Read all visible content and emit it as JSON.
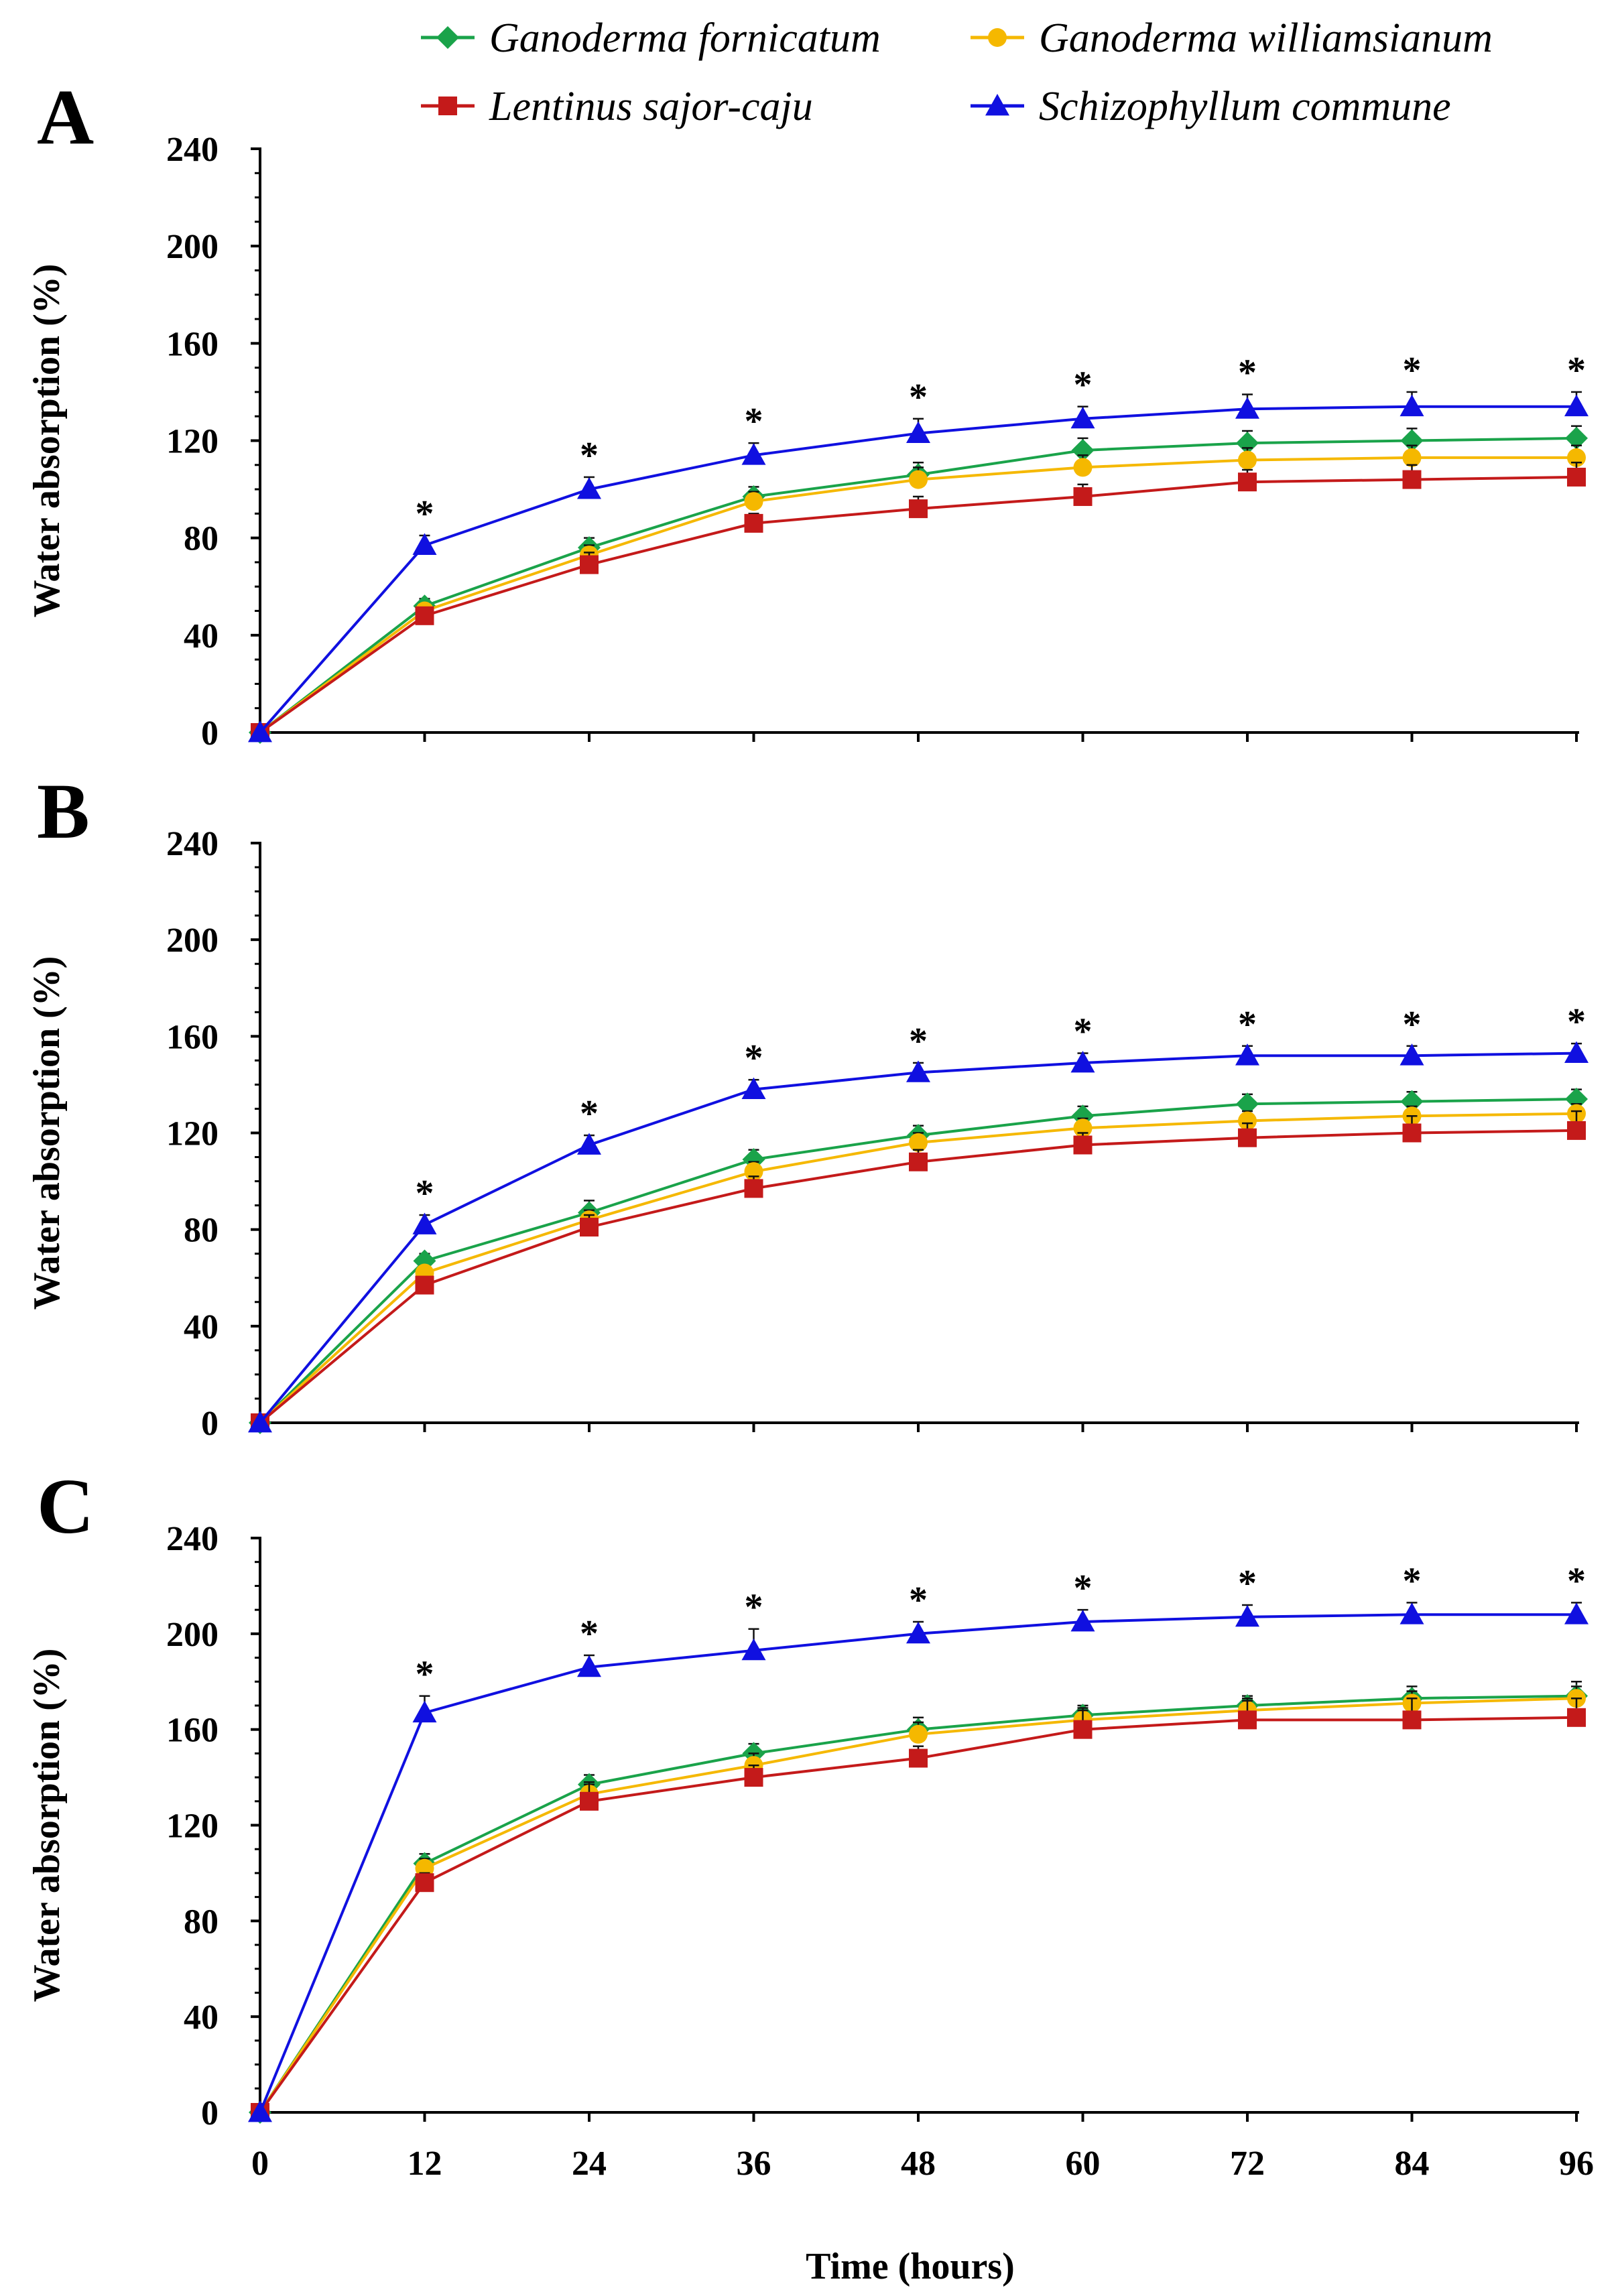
{
  "chart_data": {
    "type": "line",
    "xlabel": "Time (hours)",
    "ylabel": "Water absorption (%)",
    "x": [
      0,
      12,
      24,
      36,
      48,
      60,
      72,
      84,
      96
    ],
    "x_tick_labels": [
      "0",
      "12",
      "24",
      "36",
      "48",
      "60",
      "72",
      "84",
      "96"
    ],
    "ylim": [
      0,
      240
    ],
    "y_ticks": [
      0,
      40,
      80,
      120,
      160,
      200,
      240
    ],
    "y_tick_labels": [
      "0",
      "40",
      "80",
      "120",
      "160",
      "200",
      "240"
    ],
    "significance_marker": "*",
    "legend": [
      {
        "name": "Ganoderma fornicatum",
        "color": "#1aa34a",
        "marker": "diamond"
      },
      {
        "name": "Ganoderma williamsianum",
        "color": "#f5b800",
        "marker": "circle"
      },
      {
        "name": "Lentinus sajor-caju",
        "color": "#c41a1a",
        "marker": "square"
      },
      {
        "name": "Schizophyllum commune",
        "color": "#1010e0",
        "marker": "triangle"
      }
    ],
    "panels": [
      {
        "label": "A",
        "series": [
          {
            "name": "Ganoderma fornicatum",
            "values": [
              0,
              52,
              76,
              97,
              106,
              116,
              119,
              120,
              121
            ],
            "errors": [
              0,
              3,
              4,
              4,
              5,
              5,
              5,
              5,
              5
            ]
          },
          {
            "name": "Ganoderma williamsianum",
            "values": [
              0,
              50,
              73,
              95,
              104,
              109,
              112,
              113,
              113
            ],
            "errors": [
              0,
              3,
              4,
              4,
              5,
              5,
              5,
              5,
              5
            ]
          },
          {
            "name": "Lentinus sajor-caju",
            "values": [
              0,
              48,
              69,
              86,
              92,
              97,
              103,
              104,
              105
            ],
            "errors": [
              0,
              3,
              5,
              4,
              5,
              5,
              5,
              6,
              6
            ]
          },
          {
            "name": "Schizophyllum commune",
            "values": [
              0,
              77,
              100,
              114,
              123,
              129,
              133,
              134,
              134
            ],
            "errors": [
              0,
              4,
              5,
              5,
              6,
              5,
              6,
              6,
              6
            ]
          }
        ],
        "significant_at": [
          12,
          24,
          36,
          48,
          60,
          72,
          84,
          96
        ]
      },
      {
        "label": "B",
        "series": [
          {
            "name": "Ganoderma fornicatum",
            "values": [
              0,
              67,
              87,
              109,
              119,
              127,
              132,
              133,
              134
            ],
            "errors": [
              0,
              3,
              5,
              4,
              4,
              4,
              4,
              4,
              4
            ]
          },
          {
            "name": "Ganoderma williamsianum",
            "values": [
              0,
              62,
              84,
              104,
              116,
              122,
              125,
              127,
              128
            ],
            "errors": [
              0,
              3,
              4,
              4,
              4,
              4,
              4,
              4,
              4
            ]
          },
          {
            "name": "Lentinus sajor-caju",
            "values": [
              0,
              57,
              81,
              97,
              108,
              115,
              118,
              120,
              121
            ],
            "errors": [
              0,
              3,
              5,
              5,
              5,
              5,
              6,
              7,
              8
            ]
          },
          {
            "name": "Schizophyllum commune",
            "values": [
              0,
              82,
              115,
              138,
              145,
              149,
              152,
              152,
              153
            ],
            "errors": [
              0,
              4,
              4,
              4,
              4,
              4,
              4,
              4,
              4
            ]
          }
        ],
        "significant_at": [
          12,
          24,
          36,
          48,
          60,
          72,
          84,
          96
        ]
      },
      {
        "label": "C",
        "series": [
          {
            "name": "Ganoderma fornicatum",
            "values": [
              0,
              104,
              137,
              150,
              160,
              166,
              170,
              173,
              174
            ],
            "errors": [
              0,
              4,
              4,
              4,
              5,
              4,
              4,
              5,
              6
            ]
          },
          {
            "name": "Ganoderma williamsianum",
            "values": [
              0,
              102,
              133,
              145,
              158,
              164,
              168,
              171,
              173
            ],
            "errors": [
              0,
              4,
              4,
              5,
              5,
              5,
              5,
              5,
              5
            ]
          },
          {
            "name": "Lentinus sajor-caju",
            "values": [
              0,
              96,
              130,
              140,
              148,
              160,
              164,
              164,
              165
            ],
            "errors": [
              0,
              4,
              8,
              5,
              5,
              8,
              8,
              9,
              8
            ]
          },
          {
            "name": "Schizophyllum commune",
            "values": [
              0,
              167,
              186,
              193,
              200,
              205,
              207,
              208,
              208
            ],
            "errors": [
              0,
              7,
              5,
              9,
              5,
              5,
              5,
              5,
              5
            ]
          }
        ],
        "significant_at": [
          12,
          24,
          36,
          48,
          60,
          72,
          84,
          96
        ]
      }
    ]
  }
}
